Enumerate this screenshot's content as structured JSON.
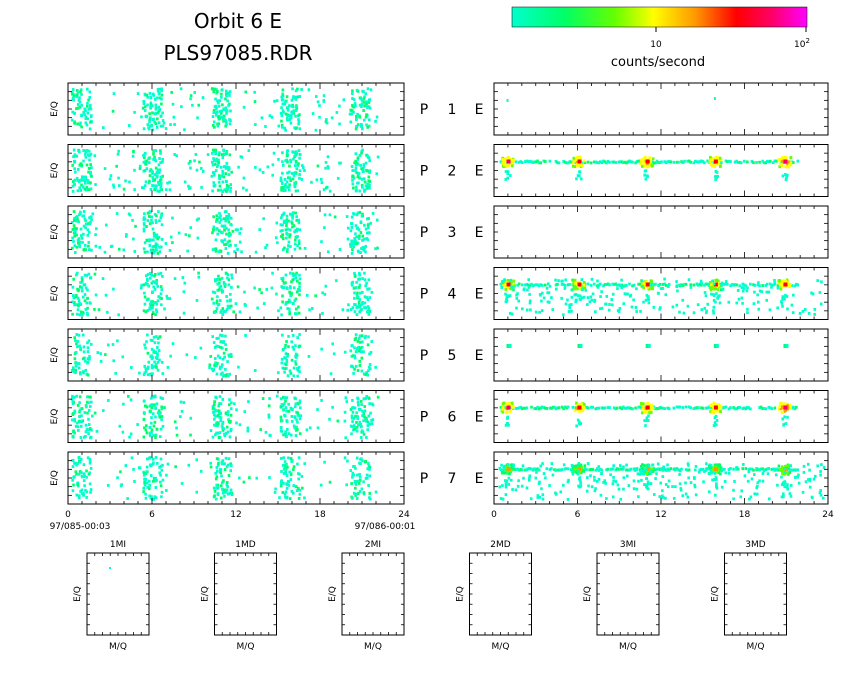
{
  "header": {
    "title_line1": "Orbit 6 E",
    "title_line2": "PLS97085.RDR"
  },
  "colorbar": {
    "colors": [
      "#00ffcc",
      "#00ff66",
      "#66ff00",
      "#ffff00",
      "#ff9900",
      "#ff0000",
      "#ff0066",
      "#ff00ff"
    ],
    "tick_10": "10",
    "tick_100_base": "10",
    "tick_100_exp": "2",
    "label": "counts/second"
  },
  "panel_ylabel": "E/Q",
  "row_labels": [
    {
      "p": "P",
      "n": "1",
      "e": "E"
    },
    {
      "p": "P",
      "n": "2",
      "e": "E"
    },
    {
      "p": "P",
      "n": "3",
      "e": "E"
    },
    {
      "p": "P",
      "n": "4",
      "e": "E"
    },
    {
      "p": "P",
      "n": "5",
      "e": "E"
    },
    {
      "p": "P",
      "n": "6",
      "e": "E"
    },
    {
      "p": "P",
      "n": "7",
      "e": "E"
    }
  ],
  "xaxis": {
    "ticks": [
      "0",
      "6",
      "12",
      "18",
      "24"
    ],
    "start_label": "97/085-00:03",
    "end_label": "97/086-00:01"
  },
  "mini_panels": [
    {
      "title": "1MI",
      "xlabel": "M/Q",
      "ylabel": "E/Q"
    },
    {
      "title": "1MD",
      "xlabel": "M/Q",
      "ylabel": "E/Q"
    },
    {
      "title": "2MI",
      "xlabel": "M/Q",
      "ylabel": "E/Q"
    },
    {
      "title": "2MD",
      "xlabel": "M/Q",
      "ylabel": "E/Q"
    },
    {
      "title": "3MI",
      "xlabel": "M/Q",
      "ylabel": "E/Q"
    },
    {
      "title": "3MD",
      "xlabel": "M/Q",
      "ylabel": "E/Q"
    }
  ],
  "chart_data": {
    "type": "heatmap",
    "xlim": [
      0,
      24
    ],
    "color_scale": "log",
    "left_column": {
      "bursts_x": [
        0.9,
        6.0,
        10.9,
        15.8,
        20.8
      ],
      "density": [
        0.35,
        0.45,
        0.35,
        0.3,
        0.2,
        0.35,
        0.25
      ]
    },
    "right_column": {
      "peaks_x": [
        0.9,
        6.0,
        10.9,
        15.8,
        20.8
      ],
      "rows": [
        {
          "kind": "sparse",
          "level": 0.05
        },
        {
          "kind": "band",
          "level": 2.5
        },
        {
          "kind": "empty",
          "level": 0
        },
        {
          "kind": "band-scatter",
          "level": 2.0
        },
        {
          "kind": "dots",
          "level": 0.6
        },
        {
          "kind": "band",
          "level": 2.5
        },
        {
          "kind": "band-scatter-weak",
          "level": 1.0
        }
      ]
    }
  }
}
